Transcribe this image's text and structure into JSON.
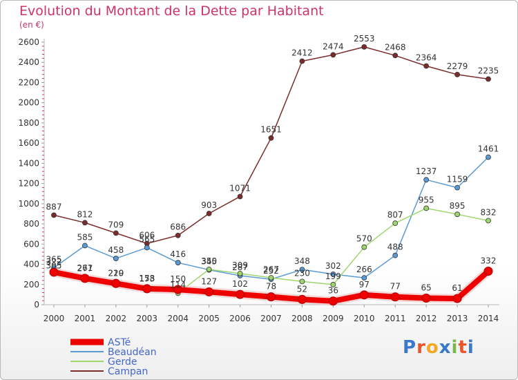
{
  "title": "Evolution du Montant de la Dette par Habitant",
  "subtitle": "(en €)",
  "logo": {
    "text": "Proxiti",
    "colors": [
      "#3a78c9",
      "#e8542c",
      "#f4a825",
      "#3a78c9",
      "#7ab648",
      "#e8542c",
      "#3a78c9"
    ]
  },
  "chart_data": {
    "type": "line",
    "x": [
      "2000",
      "2001",
      "2002",
      "2003",
      "2004",
      "2005",
      "2006",
      "2007",
      "2008",
      "2009",
      "2010",
      "2011",
      "2012",
      "2013",
      "2014"
    ],
    "ylim": [
      0,
      2600
    ],
    "yticks": [
      0,
      200,
      400,
      600,
      800,
      1000,
      1200,
      1400,
      1600,
      1800,
      2000,
      2200,
      2400,
      2600
    ],
    "grid": false,
    "legend_position": "bottom-left",
    "series": [
      {
        "name": "ASTé",
        "color": "#ee0000",
        "values": [
          322,
          261,
          210,
          158,
          150,
          127,
          102,
          78,
          52,
          36,
          97,
          77,
          65,
          61,
          332
        ]
      },
      {
        "name": "Beaudéan",
        "color": "#5b9bd5",
        "values": [
          365,
          585,
          458,
          565,
          416,
          345,
          287,
          252,
          348,
          302,
          266,
          488,
          1237,
          1159,
          1461
        ]
      },
      {
        "name": "Gerde",
        "color": "#9ed66e",
        "values": [
          305,
          277,
          229,
          173,
          114,
          350,
          309,
          267,
          230,
          199,
          570,
          807,
          955,
          895,
          832
        ]
      },
      {
        "name": "Campan",
        "color": "#7b2c2c",
        "values": [
          887,
          812,
          709,
          606,
          686,
          903,
          1071,
          1651,
          2412,
          2474,
          2553,
          2468,
          2364,
          2279,
          2235
        ]
      }
    ]
  }
}
